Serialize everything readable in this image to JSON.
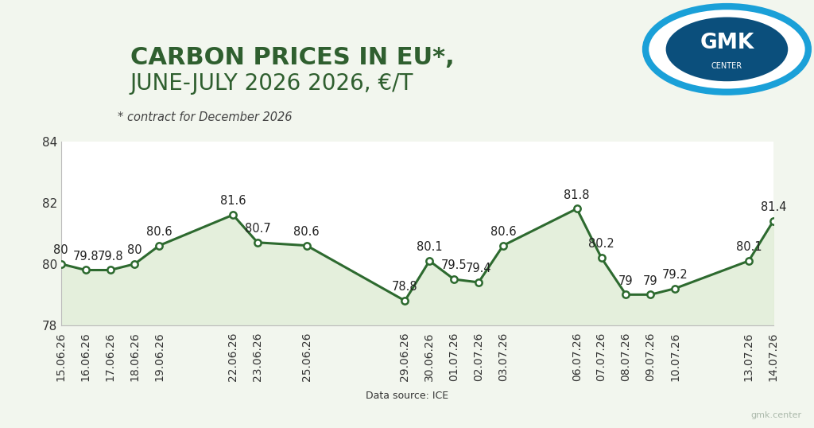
{
  "chart_data": {
    "type": "line",
    "title": [
      "CARBON PRICES IN EU*,",
      "JUNE-JULY 2026 2026, €/T"
    ],
    "subtitle": "* contract for December 2026",
    "source": "Data source: ICE",
    "logo": [
      "GMK",
      "CENTER"
    ],
    "watermark": "gmk.center",
    "x": [
      "15.06.26",
      "16.06.26",
      "17.06.26",
      "18.06.26",
      "19.06.26",
      "22.06.26",
      "23.06.26",
      "25.06.26",
      "29.06.26",
      "30.06.26",
      "01.07.26",
      "02.07.26",
      "03.07.26",
      "06.07.26",
      "07.07.26",
      "08.07.26",
      "09.07.26",
      "10.07.26",
      "13.07.26",
      "14.07.26"
    ],
    "values": [
      80,
      79.8,
      79.8,
      80,
      80.6,
      81.6,
      80.7,
      80.6,
      78.8,
      80.1,
      79.5,
      79.4,
      80.6,
      81.8,
      80.2,
      79,
      79,
      79.2,
      80.1,
      81.4
    ],
    "color": "#2d6a2f",
    "marker": "o",
    "line_style": "solid",
    "xlim": [
      "15.06.26",
      "14.07.26"
    ],
    "ylim": [
      78,
      84
    ],
    "yticks": [
      78,
      80,
      82,
      84
    ],
    "grid": false,
    "data_labels": true
  }
}
